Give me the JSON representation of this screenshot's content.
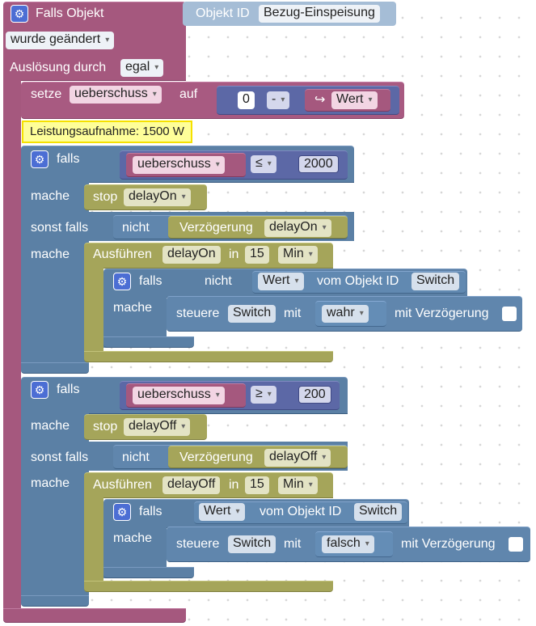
{
  "event": {
    "header": "Falls Objekt",
    "objekt_id_label": "Objekt ID",
    "objekt_id_value": "Bezug-Einspeisung",
    "change_mode": "wurde geändert",
    "trigger_label": "Auslösung durch",
    "trigger_value": "egal"
  },
  "setze": {
    "label": "setze",
    "variable": "ueberschuss",
    "auf": "auf",
    "number": "0",
    "operator": "-",
    "wert_icon": "↪",
    "wert": "Wert"
  },
  "comment": "Leistungsaufnahme: 1500 W",
  "if1": {
    "falls": "falls",
    "variable": "ueberschuss",
    "compare": "≤",
    "number": "2000",
    "mache1": "mache",
    "stop": "stop",
    "stop_timer": "delayOn",
    "sonst_falls": "sonst falls",
    "nicht": "nicht",
    "verzoegerung": "Verzögerung",
    "verz_timer": "delayOn",
    "mache2": "mache",
    "ausfuehren": "Ausführen",
    "timer": "delayOn",
    "in": "in",
    "minutes": "15",
    "unit": "Min",
    "inner": {
      "falls": "falls",
      "nicht": "nicht",
      "wert": "Wert",
      "vom": "vom Objekt ID",
      "objekt": "Switch",
      "mache": "mache",
      "steuere": "steuere",
      "steuere_obj": "Switch",
      "mit": "mit",
      "value": "wahr",
      "mit_verz": "mit Verzögerung"
    }
  },
  "if2": {
    "falls": "falls",
    "variable": "ueberschuss",
    "compare": "≥",
    "number": "200",
    "mache1": "mache",
    "stop": "stop",
    "stop_timer": "delayOff",
    "sonst_falls": "sonst falls",
    "nicht": "nicht",
    "verzoegerung": "Verzögerung",
    "verz_timer": "delayOff",
    "mache2": "mache",
    "ausfuehren": "Ausführen",
    "timer": "delayOff",
    "in": "in",
    "minutes": "15",
    "unit": "Min",
    "inner": {
      "falls": "falls",
      "wert": "Wert",
      "vom": "vom Objekt ID",
      "objekt": "Switch",
      "mache": "mache",
      "steuere": "steuere",
      "steuere_obj": "Switch",
      "mit": "mit",
      "value": "falsch",
      "mit_verz": "mit Verzögerung"
    }
  },
  "icons": {
    "gear": "gear-icon",
    "dropdown": "dropdown-arrow-icon",
    "return": "return-arrow-icon"
  },
  "colors": {
    "event_block": "#a5587e",
    "logic_block": "#5b80a5",
    "timer_block": "#a5a55a",
    "math_block": "#5c68a6",
    "comment_bg": "#fefe99"
  }
}
